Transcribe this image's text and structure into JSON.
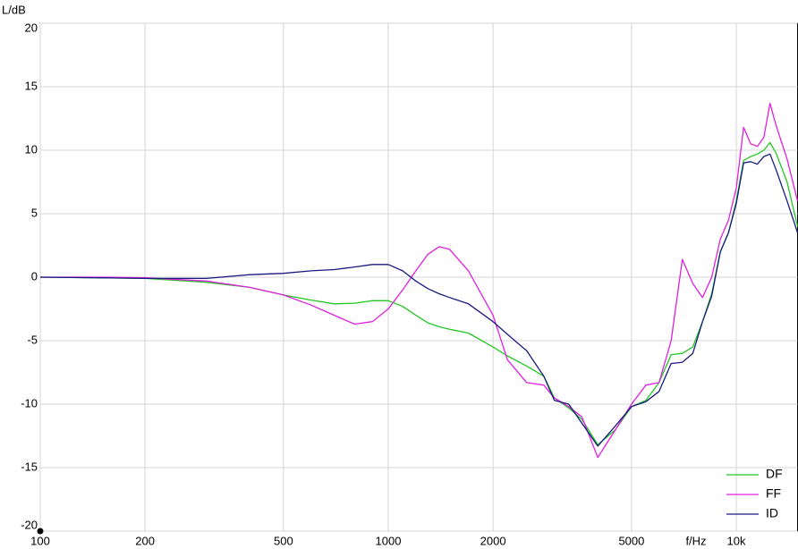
{
  "chart_data": {
    "type": "line",
    "ylabel": "L/dB",
    "xlabel": "f/Hz",
    "log_x": true,
    "grid": true,
    "legend": "bottom-right",
    "xlim": [
      100,
      15000
    ],
    "ylim": [
      -20,
      20
    ],
    "xticks": [
      100,
      200,
      500,
      1000,
      2000,
      5000,
      {
        "value": 10000,
        "label": "10k"
      }
    ],
    "yticks": [
      -20,
      -15,
      -10,
      -5,
      0,
      5,
      10,
      15,
      20
    ],
    "x": [
      100,
      150,
      200,
      300,
      400,
      500,
      600,
      700,
      800,
      900,
      1000,
      1100,
      1200,
      1300,
      1400,
      1500,
      1700,
      2000,
      2200,
      2500,
      2800,
      3000,
      3300,
      3600,
      4000,
      4500,
      5000,
      5500,
      6000,
      6500,
      7000,
      7500,
      8000,
      8500,
      9000,
      9500,
      10000,
      10500,
      11000,
      11500,
      12000,
      12500,
      13000,
      14000,
      15000
    ],
    "series": [
      {
        "name": "DF",
        "color": "#22c822",
        "values": [
          0,
          -0.05,
          -0.1,
          -0.4,
          -0.8,
          -1.4,
          -1.8,
          -2.1,
          -2.05,
          -1.85,
          -1.85,
          -2.3,
          -3,
          -3.6,
          -3.9,
          -4.1,
          -4.4,
          -5.5,
          -6.2,
          -7,
          -7.8,
          -9.5,
          -10.3,
          -11.2,
          -13.2,
          -12,
          -10.2,
          -9.7,
          -8.3,
          -6.1,
          -6,
          -5.5,
          -3.5,
          -1.3,
          2,
          3.5,
          6,
          9.2,
          9.5,
          9.7,
          10,
          10.6,
          9.8,
          7.5,
          4
        ]
      },
      {
        "name": "FF",
        "color": "#e020e0",
        "values": [
          0,
          0,
          -0.05,
          -0.3,
          -0.8,
          -1.4,
          -2.2,
          -3,
          -3.7,
          -3.5,
          -2.5,
          -1,
          0.5,
          1.8,
          2.4,
          2.2,
          0.5,
          -3,
          -6.5,
          -8.3,
          -8.5,
          -9.5,
          -10.2,
          -11,
          -14.2,
          -12,
          -10,
          -8.5,
          -8.3,
          -5,
          1.4,
          -0.5,
          -1.6,
          0,
          3,
          4.5,
          7,
          11.8,
          10.5,
          10.3,
          11,
          13.7,
          12,
          9.3,
          6
        ]
      },
      {
        "name": "ID",
        "color": "#1a1a80",
        "values": [
          0,
          -0.05,
          -0.1,
          -0.1,
          0.2,
          0.3,
          0.5,
          0.6,
          0.8,
          1,
          1,
          0.5,
          -0.3,
          -0.9,
          -1.3,
          -1.6,
          -2.1,
          -3.5,
          -4.5,
          -5.8,
          -7.8,
          -9.7,
          -10,
          -11.5,
          -13.3,
          -11.7,
          -10.2,
          -9.8,
          -9,
          -6.8,
          -6.7,
          -6,
          -3.5,
          -1.5,
          2,
          3.5,
          5.8,
          9,
          9.1,
          8.9,
          9.5,
          9.7,
          8.5,
          6,
          3.5
        ]
      }
    ]
  }
}
